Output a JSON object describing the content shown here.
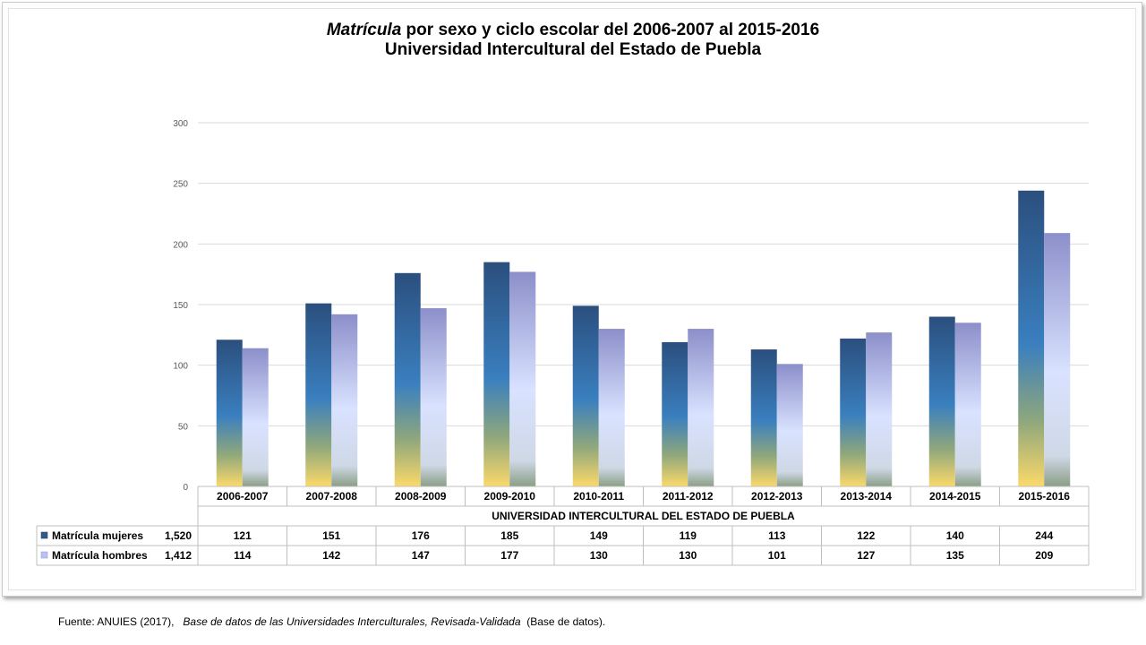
{
  "title": {
    "line1_italic": "Matrícula",
    "line1_rest": " por sexo y ciclo escolar del  2006-2007 al 2015-2016",
    "line2": "Universidad Intercultural del Estado de Puebla"
  },
  "chart_data": {
    "type": "bar",
    "categories": [
      "2006-2007",
      "2007-2008",
      "2008-2009",
      "2009-2010",
      "2010-2011",
      "2011-2012",
      "2012-2013",
      "2013-2014",
      "2014-2015",
      "2015-2016"
    ],
    "group_label": "UNIVERSIDAD INTERCULTURAL DEL ESTADO DE PUEBLA",
    "series": [
      {
        "name": "Matrícula mujeres",
        "total": "1,520",
        "values": [
          121,
          151,
          176,
          185,
          149,
          119,
          113,
          122,
          140,
          244
        ]
      },
      {
        "name": "Matrícula hombres",
        "total": "1,412",
        "values": [
          114,
          142,
          147,
          177,
          130,
          130,
          101,
          127,
          135,
          209
        ]
      }
    ],
    "yticks": [
      0,
      50,
      100,
      150,
      200,
      250,
      300
    ],
    "ylim": [
      0,
      300
    ],
    "grid": true,
    "legend": "data-table"
  },
  "source": {
    "prefix": "Fuente: ANUIES (2017),",
    "italic": "Base de datos de las Universidades  Interculturales, Revisada-Validada",
    "suffix": " (Base de datos)."
  }
}
